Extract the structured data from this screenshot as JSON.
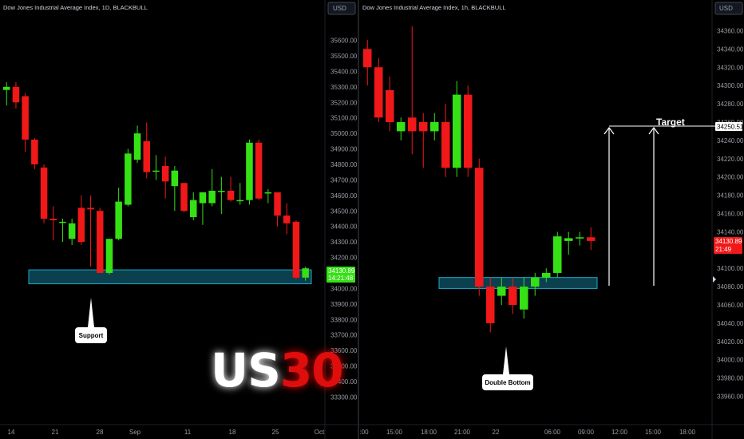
{
  "colors": {
    "up": "#35e015",
    "down": "#f01818",
    "zone_fill": "#0d4b5c",
    "zone_stroke": "#1fa8c9",
    "price_badge_left": "#35e015",
    "price_badge_right": "#f01818",
    "us30_white": "#ffffff",
    "us30_red": "#e01010"
  },
  "chart_data": [
    {
      "type": "candlestick",
      "title": "Dow Jones Industrial Average Index, 1D, BLACKBULL",
      "currency": "USD",
      "y_ticks": [
        "35600.00",
        "35500.00",
        "35400.00",
        "35300.00",
        "35200.00",
        "35100.00",
        "35000.00",
        "34900.00",
        "34800.00",
        "34700.00",
        "34600.00",
        "34500.00",
        "34400.00",
        "34300.00",
        "34200.00",
        "34000.00",
        "33900.00",
        "33800.00",
        "33700.00",
        "33600.00",
        "33500.00",
        "33400.00",
        "33300.00"
      ],
      "x_ticks": [
        "14",
        "21",
        "28",
        "Sep",
        "11",
        "18",
        "25",
        "Oct"
      ],
      "last_price": "34130.89",
      "countdown": "14:21:48",
      "ylim": [
        33230,
        35680
      ],
      "candles": [
        {
          "o": 35280,
          "h": 35330,
          "l": 35180,
          "c": 35300
        },
        {
          "o": 35300,
          "h": 35330,
          "l": 35160,
          "c": 35200
        },
        {
          "o": 35240,
          "h": 35260,
          "l": 34880,
          "c": 34960
        },
        {
          "o": 34960,
          "h": 34970,
          "l": 34770,
          "c": 34800
        },
        {
          "o": 34780,
          "h": 34800,
          "l": 34420,
          "c": 34450
        },
        {
          "o": 34450,
          "h": 34530,
          "l": 34310,
          "c": 34440
        },
        {
          "o": 34430,
          "h": 34450,
          "l": 34300,
          "c": 34430
        },
        {
          "o": 34320,
          "h": 34450,
          "l": 34280,
          "c": 34420
        },
        {
          "o": 34520,
          "h": 34600,
          "l": 34280,
          "c": 34300
        },
        {
          "o": 34520,
          "h": 34600,
          "l": 34140,
          "c": 34510
        },
        {
          "o": 34500,
          "h": 34520,
          "l": 34100,
          "c": 34100
        },
        {
          "o": 34100,
          "h": 34320,
          "l": 34090,
          "c": 34320
        },
        {
          "o": 34320,
          "h": 34650,
          "l": 34310,
          "c": 34560
        },
        {
          "o": 34540,
          "h": 34900,
          "l": 34530,
          "c": 34870
        },
        {
          "o": 34830,
          "h": 35050,
          "l": 34810,
          "c": 35000
        },
        {
          "o": 34950,
          "h": 35070,
          "l": 34710,
          "c": 34750
        },
        {
          "o": 34760,
          "h": 34860,
          "l": 34700,
          "c": 34760
        },
        {
          "o": 34790,
          "h": 34850,
          "l": 34580,
          "c": 34690
        },
        {
          "o": 34660,
          "h": 34790,
          "l": 34500,
          "c": 34760
        },
        {
          "o": 34680,
          "h": 34680,
          "l": 34490,
          "c": 34500
        },
        {
          "o": 34460,
          "h": 34620,
          "l": 34440,
          "c": 34570
        },
        {
          "o": 34550,
          "h": 34620,
          "l": 34410,
          "c": 34620
        },
        {
          "o": 34550,
          "h": 34770,
          "l": 34530,
          "c": 34630
        },
        {
          "o": 34630,
          "h": 34720,
          "l": 34480,
          "c": 34630
        },
        {
          "o": 34630,
          "h": 34720,
          "l": 34560,
          "c": 34570
        },
        {
          "o": 34570,
          "h": 34680,
          "l": 34540,
          "c": 34570
        },
        {
          "o": 34570,
          "h": 34960,
          "l": 34540,
          "c": 34940
        },
        {
          "o": 34940,
          "h": 34960,
          "l": 34570,
          "c": 34580
        },
        {
          "o": 34620,
          "h": 34640,
          "l": 34550,
          "c": 34620
        },
        {
          "o": 34620,
          "h": 34620,
          "l": 34400,
          "c": 34470
        },
        {
          "o": 34470,
          "h": 34550,
          "l": 34350,
          "c": 34420
        },
        {
          "o": 34430,
          "h": 34440,
          "l": 34060,
          "c": 34070
        },
        {
          "o": 34070,
          "h": 34140,
          "l": 34050,
          "c": 34130
        }
      ],
      "zone": {
        "from": 34030,
        "to": 34120
      },
      "annotations": [
        {
          "text": "Support"
        }
      ]
    },
    {
      "type": "candlestick",
      "title": "Dow Jones Industrial Average Index, 1h, BLACKBULL",
      "currency": "USD",
      "y_ticks": [
        "34360.00",
        "34340.00",
        "34320.00",
        "34300.00",
        "34280.00",
        "34260.00",
        "34240.00",
        "34220.00",
        "34200.00",
        "34180.00",
        "34160.00",
        "34140.00",
        "34100.00",
        "34080.00",
        "34060.00",
        "34040.00",
        "34020.00",
        "34000.00",
        "33980.00",
        "33960.00"
      ],
      "x_ticks": [
        ":00",
        "15:00",
        "18:00",
        "21:00",
        "22",
        "06:00",
        "09:00",
        "12:00",
        "15:00",
        "18:00"
      ],
      "last_price": "34130.89",
      "countdown": "21:49",
      "target_price": "34250.51",
      "ylim": [
        33950,
        34370
      ],
      "candles": [
        {
          "o": 34340,
          "h": 34350,
          "l": 34300,
          "c": 34320
        },
        {
          "o": 34320,
          "h": 34330,
          "l": 34260,
          "c": 34265
        },
        {
          "o": 34295,
          "h": 34310,
          "l": 34250,
          "c": 34260
        },
        {
          "o": 34250,
          "h": 34265,
          "l": 34240,
          "c": 34260
        },
        {
          "o": 34265,
          "h": 34365,
          "l": 34225,
          "c": 34250
        },
        {
          "o": 34260,
          "h": 34270,
          "l": 34210,
          "c": 34250
        },
        {
          "o": 34250,
          "h": 34270,
          "l": 34240,
          "c": 34260
        },
        {
          "o": 34260,
          "h": 34280,
          "l": 34200,
          "c": 34210
        },
        {
          "o": 34210,
          "h": 34305,
          "l": 34200,
          "c": 34290
        },
        {
          "o": 34290,
          "h": 34300,
          "l": 34200,
          "c": 34210
        },
        {
          "o": 34210,
          "h": 34220,
          "l": 34070,
          "c": 34080
        },
        {
          "o": 34080,
          "h": 34090,
          "l": 34030,
          "c": 34040
        },
        {
          "o": 34070,
          "h": 34090,
          "l": 34060,
          "c": 34080
        },
        {
          "o": 34080,
          "h": 34090,
          "l": 34050,
          "c": 34060
        },
        {
          "o": 34055,
          "h": 34090,
          "l": 34045,
          "c": 34080
        },
        {
          "o": 34080,
          "h": 34095,
          "l": 34070,
          "c": 34090
        },
        {
          "o": 34090,
          "h": 34100,
          "l": 34085,
          "c": 34095
        },
        {
          "o": 34095,
          "h": 34140,
          "l": 34090,
          "c": 34135
        },
        {
          "o": 34130,
          "h": 34140,
          "l": 34115,
          "c": 34133
        },
        {
          "o": 34133,
          "h": 34140,
          "l": 34125,
          "c": 34134
        },
        {
          "o": 34134,
          "h": 34145,
          "l": 34120,
          "c": 34130
        }
      ],
      "zone": {
        "from": 34078,
        "to": 34090
      },
      "annotations": [
        {
          "text": "Double Bottom"
        },
        {
          "text": "Target"
        }
      ]
    }
  ],
  "watermark": {
    "part1": "US",
    "part2": "30"
  }
}
